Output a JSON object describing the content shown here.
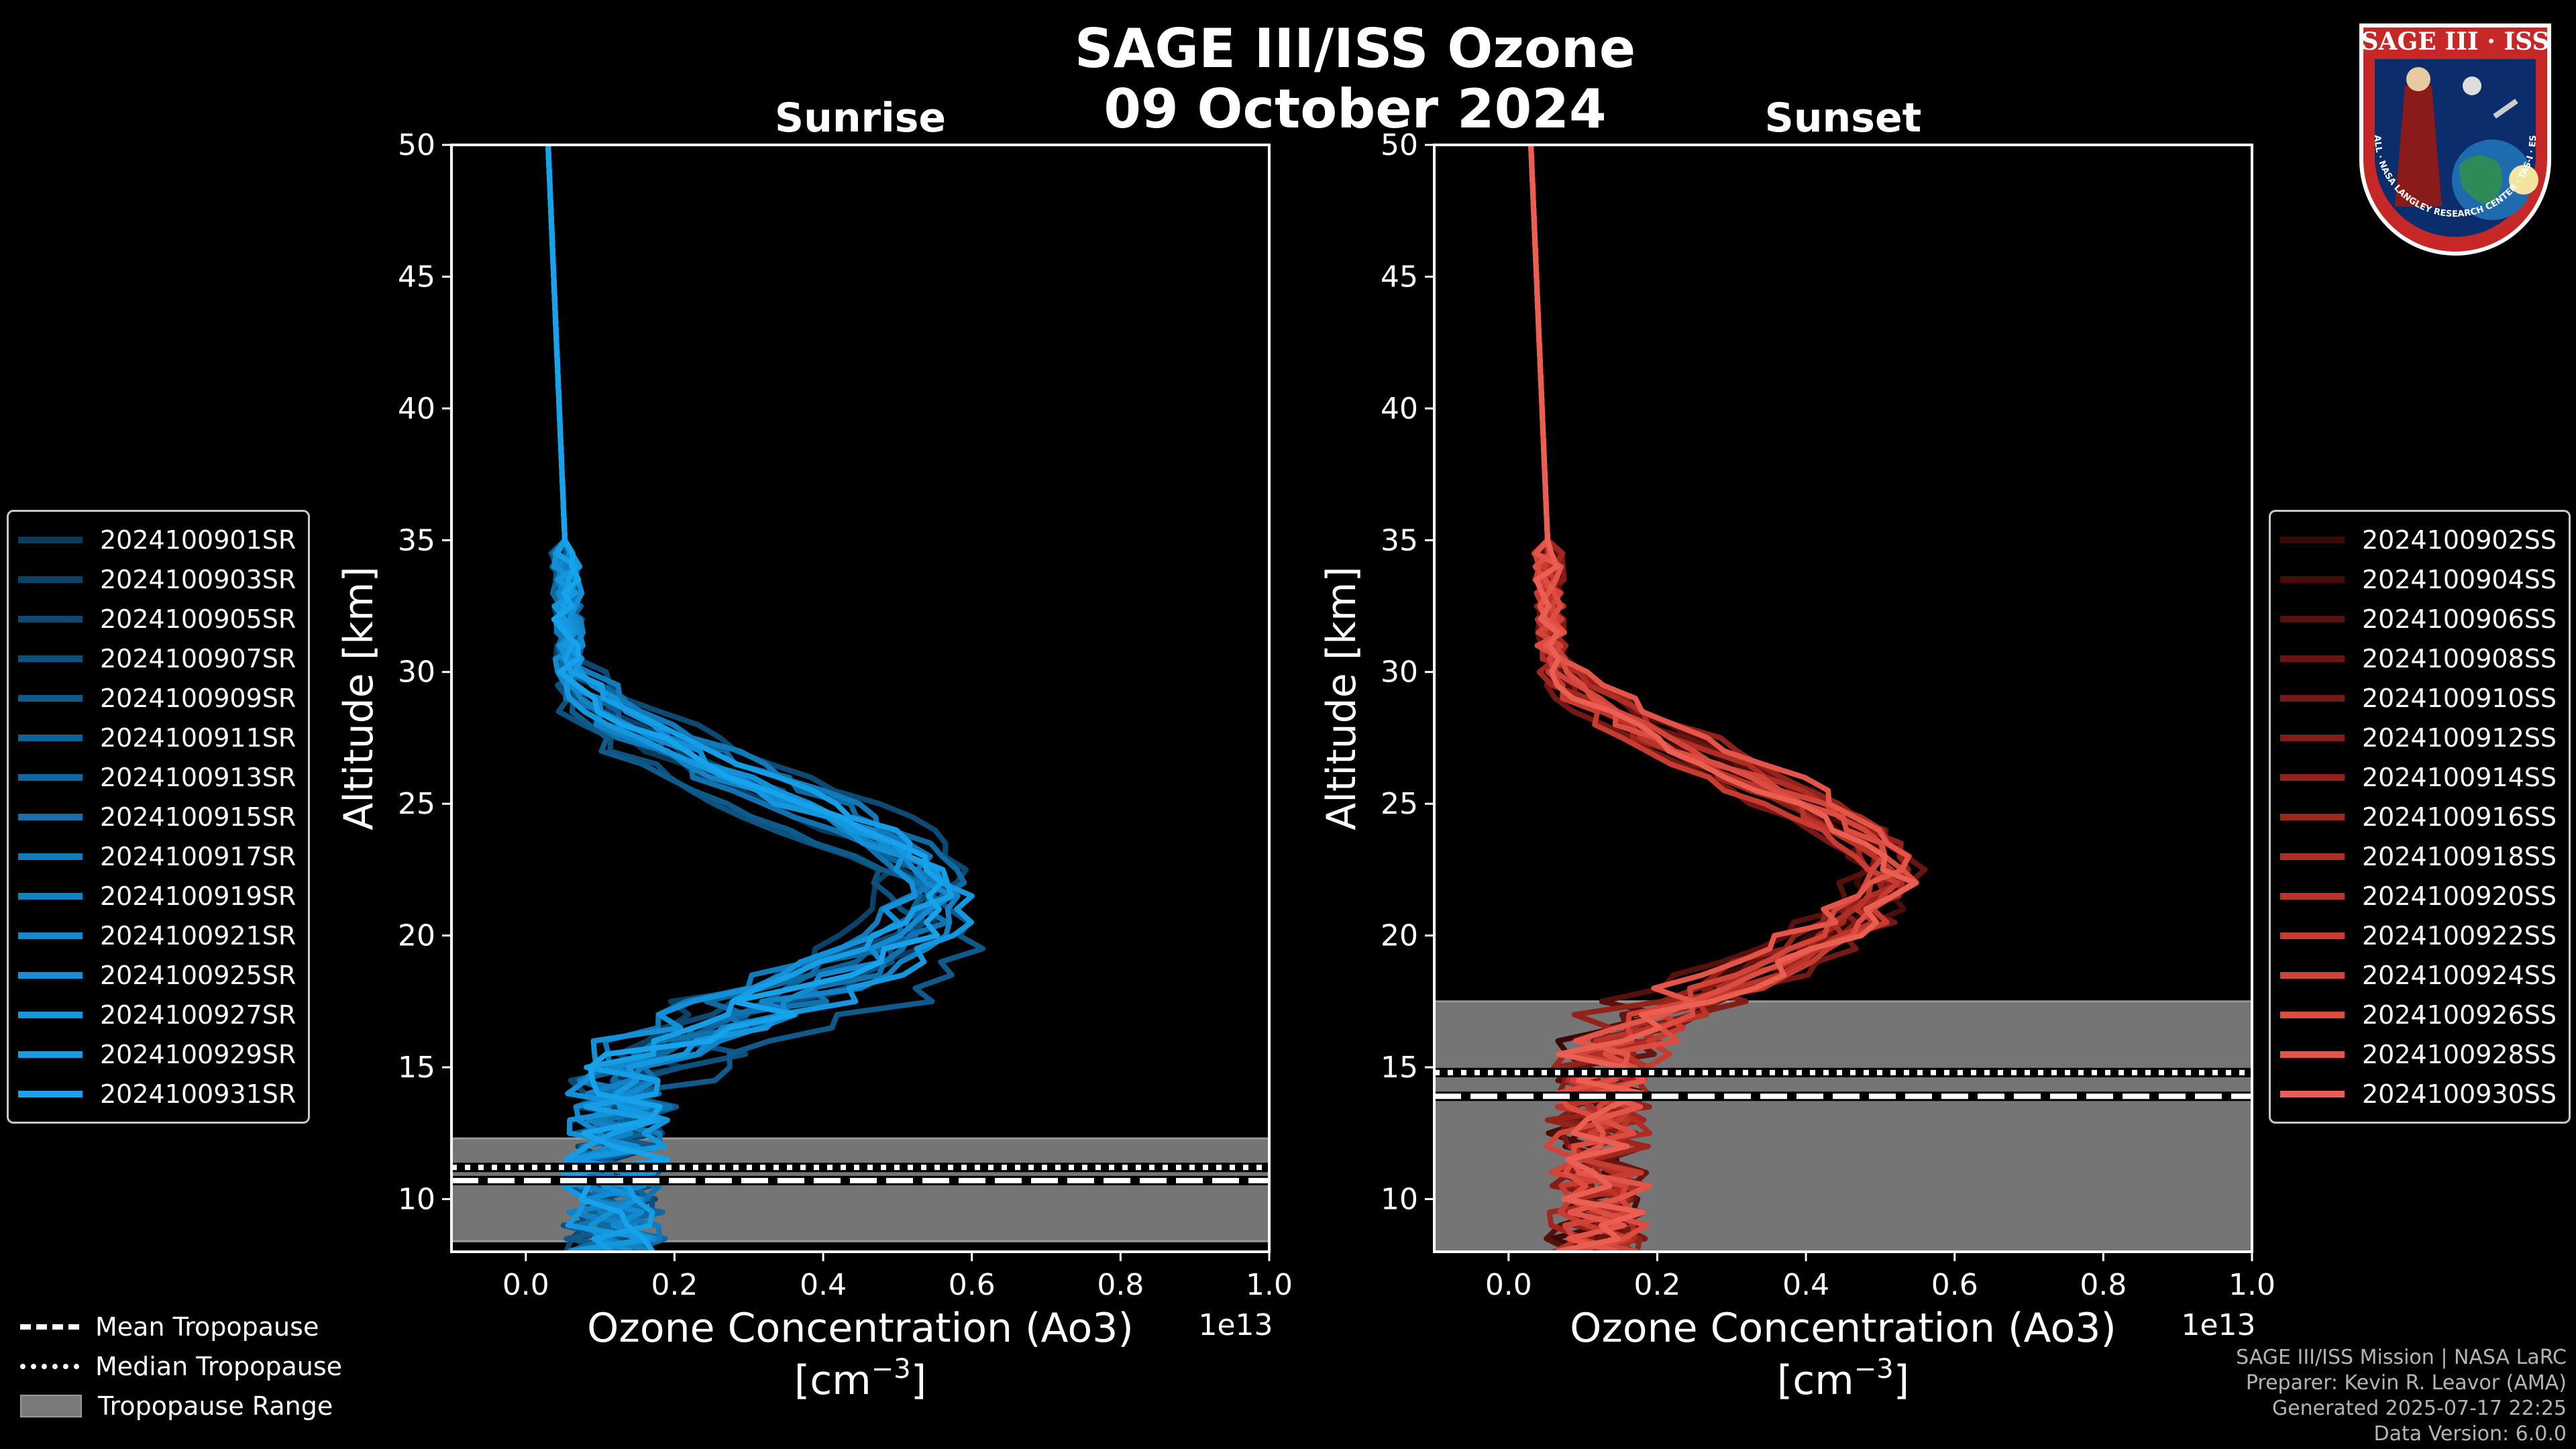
{
  "title": "SAGE III/ISS Ozone",
  "subtitle": "09 October 2024",
  "chart_data": [
    {
      "type": "line",
      "title": "Sunrise",
      "xlabel": "Ozone Concentration (Ao3)",
      "xunit": "[cm$^{-3}$]",
      "xunit_base": "[cm",
      "xunit_exp": "−3",
      "xunit_close": "]",
      "ylabel": "Altitude [km]",
      "xlim": [
        -0.1,
        1.0
      ],
      "ylim": [
        8,
        50
      ],
      "x_offset_label": "1e13",
      "xticks": [
        0.0,
        0.2,
        0.4,
        0.6,
        0.8,
        1.0
      ],
      "xtick_labels": [
        "0.0",
        "0.2",
        "0.4",
        "0.6",
        "0.8",
        "1.0"
      ],
      "yticks": [
        10,
        15,
        20,
        25,
        30,
        35,
        40,
        45,
        50
      ],
      "ytick_labels": [
        "10",
        "15",
        "20",
        "25",
        "30",
        "35",
        "40",
        "45",
        "50"
      ],
      "tropopause_mean": 10.7,
      "tropopause_median": 11.2,
      "tropopause_range": [
        8.4,
        12.3
      ],
      "series": [
        {
          "name": "2024100901SR",
          "color": "#0a3a5c",
          "peak": 0.56,
          "peak_alt": 21.0
        },
        {
          "name": "2024100903SR",
          "color": "#0b4267",
          "peak": 0.5,
          "peak_alt": 22.0
        },
        {
          "name": "2024100905SR",
          "color": "#0c4a73",
          "peak": 0.58,
          "peak_alt": 22.5
        },
        {
          "name": "2024100907SR",
          "color": "#0d527f",
          "peak": 0.52,
          "peak_alt": 20.5
        },
        {
          "name": "2024100909SR",
          "color": "#0e5a8b",
          "peak": 0.6,
          "peak_alt": 20.0
        },
        {
          "name": "2024100911SR",
          "color": "#0f6297",
          "peak": 0.54,
          "peak_alt": 21.5
        },
        {
          "name": "2024100913SR",
          "color": "#0f6aa2",
          "peak": 0.57,
          "peak_alt": 22.0
        },
        {
          "name": "2024100915SR",
          "color": "#1072ae",
          "peak": 0.55,
          "peak_alt": 21.0
        },
        {
          "name": "2024100917SR",
          "color": "#117aba",
          "peak": 0.53,
          "peak_alt": 22.5
        },
        {
          "name": "2024100919SR",
          "color": "#1282c5",
          "peak": 0.58,
          "peak_alt": 21.0
        },
        {
          "name": "2024100921SR",
          "color": "#1389cf",
          "peak": 0.56,
          "peak_alt": 21.5
        },
        {
          "name": "2024100925SR",
          "color": "#1390d7",
          "peak": 0.51,
          "peak_alt": 22.0
        },
        {
          "name": "2024100927SR",
          "color": "#1497de",
          "peak": 0.59,
          "peak_alt": 21.0
        },
        {
          "name": "2024100929SR",
          "color": "#159de5",
          "peak": 0.55,
          "peak_alt": 22.0
        },
        {
          "name": "2024100931SR",
          "color": "#16a3eb",
          "peak": 0.57,
          "peak_alt": 21.5
        }
      ]
    },
    {
      "type": "line",
      "title": "Sunset",
      "xlabel": "Ozone Concentration (Ao3)",
      "xunit": "[cm$^{-3}$]",
      "xunit_base": "[cm",
      "xunit_exp": "−3",
      "xunit_close": "]",
      "ylabel": "Altitude [km]",
      "xlim": [
        -0.1,
        1.0
      ],
      "ylim": [
        8,
        50
      ],
      "x_offset_label": "1e13",
      "xticks": [
        0.0,
        0.2,
        0.4,
        0.6,
        0.8,
        1.0
      ],
      "xtick_labels": [
        "0.0",
        "0.2",
        "0.4",
        "0.6",
        "0.8",
        "1.0"
      ],
      "yticks": [
        10,
        15,
        20,
        25,
        30,
        35,
        40,
        45,
        50
      ],
      "ytick_labels": [
        "10",
        "15",
        "20",
        "25",
        "30",
        "35",
        "40",
        "45",
        "50"
      ],
      "tropopause_mean": 13.9,
      "tropopause_median": 14.8,
      "tropopause_range": [
        8.0,
        17.5
      ],
      "series": [
        {
          "name": "2024100902SS",
          "color": "#3a0a08",
          "peak": 0.5,
          "peak_alt": 22.5
        },
        {
          "name": "2024100904SS",
          "color": "#480d0a",
          "peak": 0.52,
          "peak_alt": 22.0
        },
        {
          "name": "2024100906SS",
          "color": "#57110d",
          "peak": 0.48,
          "peak_alt": 23.0
        },
        {
          "name": "2024100908SS",
          "color": "#661510",
          "peak": 0.53,
          "peak_alt": 22.5
        },
        {
          "name": "2024100910SS",
          "color": "#741913",
          "peak": 0.51,
          "peak_alt": 21.5
        },
        {
          "name": "2024100912SS",
          "color": "#831d16",
          "peak": 0.49,
          "peak_alt": 22.0
        },
        {
          "name": "2024100914SS",
          "color": "#92221a",
          "peak": 0.52,
          "peak_alt": 23.0
        },
        {
          "name": "2024100916SS",
          "color": "#a0271e",
          "peak": 0.5,
          "peak_alt": 22.0
        },
        {
          "name": "2024100918SS",
          "color": "#ae2d24",
          "peak": 0.53,
          "peak_alt": 22.5
        },
        {
          "name": "2024100920SS",
          "color": "#bb342a",
          "peak": 0.51,
          "peak_alt": 22.0
        },
        {
          "name": "2024100922SS",
          "color": "#c73c31",
          "peak": 0.52,
          "peak_alt": 21.5
        },
        {
          "name": "2024100924SS",
          "color": "#d24439",
          "peak": 0.5,
          "peak_alt": 22.5
        },
        {
          "name": "2024100926SS",
          "color": "#dc4c41",
          "peak": 0.53,
          "peak_alt": 22.0
        },
        {
          "name": "2024100928SS",
          "color": "#e45549",
          "peak": 0.51,
          "peak_alt": 23.0
        },
        {
          "name": "2024100930SS",
          "color": "#eb5e52",
          "peak": 0.52,
          "peak_alt": 22.0
        }
      ]
    }
  ],
  "tropopause_legend": [
    {
      "label": "Mean Tropopause",
      "style": "dashed"
    },
    {
      "label": "Median Tropopause",
      "style": "dotted"
    },
    {
      "label": "Tropopause Range",
      "style": "fill"
    }
  ],
  "footer": [
    "SAGE III/ISS Mission | NASA LaRC",
    "Preparer: Kevin R. Leavor (AMA)",
    "Generated 2025-07-17 22:25",
    "Data Version: 6.0.0"
  ],
  "logo": {
    "title": "SAGE III · ISS",
    "ring_text": "BALL · NASA LANGLEY RESEARCH CENTER · TAS-I · ESA",
    "colors": {
      "ring": "#c62828",
      "blue": "#0b2d6b"
    }
  }
}
